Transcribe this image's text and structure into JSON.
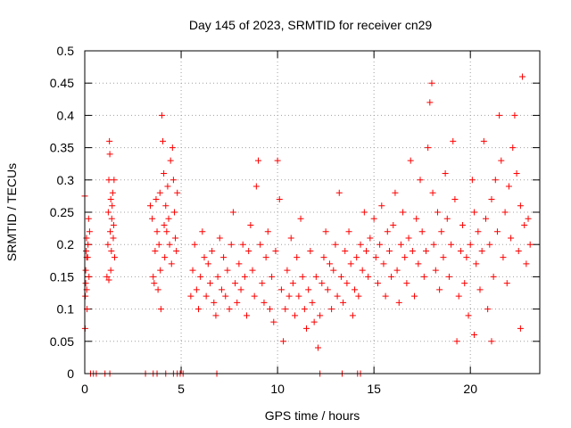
{
  "chart_data": {
    "type": "scatter",
    "title": "Day 145 of 2023, SRMTID for receiver cn29",
    "xlabel": "GPS time / hours",
    "ylabel": "SRMTID / TECUs",
    "xlim": [
      0,
      23.6
    ],
    "ylim": [
      0,
      0.5
    ],
    "x_ticks": [
      0,
      5,
      10,
      15,
      20
    ],
    "x_tick_labels": [
      "0",
      "5",
      "10",
      "15",
      "20"
    ],
    "y_ticks": [
      0,
      0.05,
      0.1,
      0.15,
      0.2,
      0.25,
      0.3,
      0.35,
      0.4,
      0.45,
      0.5
    ],
    "y_tick_labels": [
      "0",
      "0.05",
      "0.1",
      "0.15",
      "0.2",
      "0.25",
      "0.3",
      "0.35",
      "0.4",
      "0.45",
      "0.5"
    ],
    "grid": true,
    "marker": "+",
    "color": "#ff0000",
    "series": [
      {
        "name": "cn29",
        "points": [
          [
            0.0,
            0.275
          ],
          [
            0.02,
            0.07
          ],
          [
            0.03,
            0.12
          ],
          [
            0.05,
            0.16
          ],
          [
            0.07,
            0.19
          ],
          [
            0.09,
            0.21
          ],
          [
            0.1,
            0.13
          ],
          [
            0.12,
            0.1
          ],
          [
            0.15,
            0.18
          ],
          [
            0.17,
            0.2
          ],
          [
            0.2,
            0.24
          ],
          [
            0.22,
            0.15
          ],
          [
            0.25,
            0.22
          ],
          [
            0.1,
            0.18
          ],
          [
            0.05,
            0.14
          ],
          [
            1.15,
            0.15
          ],
          [
            1.2,
            0.2
          ],
          [
            1.22,
            0.25
          ],
          [
            1.25,
            0.3
          ],
          [
            1.28,
            0.36
          ],
          [
            1.3,
            0.34
          ],
          [
            1.32,
            0.22
          ],
          [
            1.35,
            0.27
          ],
          [
            1.38,
            0.19
          ],
          [
            1.4,
            0.24
          ],
          [
            1.42,
            0.26
          ],
          [
            1.45,
            0.28
          ],
          [
            1.48,
            0.21
          ],
          [
            1.5,
            0.23
          ],
          [
            1.52,
            0.3
          ],
          [
            1.55,
            0.18
          ],
          [
            1.25,
            0.145
          ],
          [
            1.35,
            0.16
          ],
          [
            3.4,
            0.26
          ],
          [
            3.5,
            0.24
          ],
          [
            3.55,
            0.15
          ],
          [
            3.6,
            0.14
          ],
          [
            3.65,
            0.19
          ],
          [
            3.7,
            0.27
          ],
          [
            3.75,
            0.22
          ],
          [
            3.8,
            0.13
          ],
          [
            3.85,
            0.2
          ],
          [
            3.9,
            0.28
          ],
          [
            3.92,
            0.16
          ],
          [
            3.95,
            0.1
          ],
          [
            4.0,
            0.4
          ],
          [
            4.05,
            0.36
          ],
          [
            4.1,
            0.31
          ],
          [
            4.12,
            0.23
          ],
          [
            4.15,
            0.18
          ],
          [
            4.2,
            0.26
          ],
          [
            4.25,
            0.22
          ],
          [
            4.3,
            0.29
          ],
          [
            4.35,
            0.24
          ],
          [
            4.4,
            0.2
          ],
          [
            4.45,
            0.33
          ],
          [
            4.5,
            0.17
          ],
          [
            4.55,
            0.35
          ],
          [
            4.6,
            0.3
          ],
          [
            4.65,
            0.25
          ],
          [
            4.7,
            0.21
          ],
          [
            4.75,
            0.19
          ],
          [
            4.8,
            0.28
          ],
          [
            5.5,
            0.12
          ],
          [
            5.6,
            0.16
          ],
          [
            5.7,
            0.2
          ],
          [
            5.8,
            0.13
          ],
          [
            5.9,
            0.1
          ],
          [
            6.0,
            0.15
          ],
          [
            6.1,
            0.22
          ],
          [
            6.2,
            0.18
          ],
          [
            6.3,
            0.12
          ],
          [
            6.4,
            0.17
          ],
          [
            6.5,
            0.14
          ],
          [
            6.6,
            0.19
          ],
          [
            6.7,
            0.11
          ],
          [
            6.8,
            0.09
          ],
          [
            6.9,
            0.15
          ],
          [
            7.0,
            0.21
          ],
          [
            7.1,
            0.13
          ],
          [
            7.2,
            0.18
          ],
          [
            7.3,
            0.12
          ],
          [
            7.4,
            0.16
          ],
          [
            7.5,
            0.1
          ],
          [
            7.6,
            0.2
          ],
          [
            7.7,
            0.25
          ],
          [
            7.8,
            0.14
          ],
          [
            7.9,
            0.11
          ],
          [
            8.0,
            0.17
          ],
          [
            8.1,
            0.13
          ],
          [
            8.2,
            0.2
          ],
          [
            8.3,
            0.15
          ],
          [
            8.4,
            0.09
          ],
          [
            8.5,
            0.19
          ],
          [
            8.6,
            0.23
          ],
          [
            8.7,
            0.16
          ],
          [
            8.8,
            0.12
          ],
          [
            8.9,
            0.29
          ],
          [
            9.0,
            0.33
          ],
          [
            9.1,
            0.2
          ],
          [
            9.2,
            0.14
          ],
          [
            9.3,
            0.11
          ],
          [
            9.4,
            0.18
          ],
          [
            9.5,
            0.22
          ],
          [
            9.6,
            0.1
          ],
          [
            9.7,
            0.15
          ],
          [
            9.8,
            0.08
          ],
          [
            9.9,
            0.19
          ],
          [
            10.0,
            0.33
          ],
          [
            10.1,
            0.27
          ],
          [
            10.2,
            0.13
          ],
          [
            10.3,
            0.05
          ],
          [
            10.4,
            0.1
          ],
          [
            10.5,
            0.16
          ],
          [
            10.6,
            0.12
          ],
          [
            10.7,
            0.21
          ],
          [
            10.8,
            0.14
          ],
          [
            10.9,
            0.09
          ],
          [
            11.0,
            0.18
          ],
          [
            11.1,
            0.12
          ],
          [
            11.2,
            0.24
          ],
          [
            11.3,
            0.15
          ],
          [
            11.4,
            0.1
          ],
          [
            11.5,
            0.07
          ],
          [
            11.6,
            0.13
          ],
          [
            11.7,
            0.19
          ],
          [
            11.8,
            0.11
          ],
          [
            11.9,
            0.08
          ],
          [
            12.0,
            0.15
          ],
          [
            12.1,
            0.04
          ],
          [
            12.2,
            0.09
          ],
          [
            12.3,
            0.14
          ],
          [
            12.4,
            0.18
          ],
          [
            12.5,
            0.22
          ],
          [
            12.6,
            0.13
          ],
          [
            12.7,
            0.17
          ],
          [
            12.8,
            0.1
          ],
          [
            12.9,
            0.16
          ],
          [
            13.0,
            0.2
          ],
          [
            13.1,
            0.12
          ],
          [
            13.2,
            0.28
          ],
          [
            13.3,
            0.15
          ],
          [
            13.4,
            0.11
          ],
          [
            13.5,
            0.19
          ],
          [
            13.6,
            0.14
          ],
          [
            13.7,
            0.22
          ],
          [
            13.8,
            0.17
          ],
          [
            13.9,
            0.09
          ],
          [
            14.0,
            0.13
          ],
          [
            14.1,
            0.18
          ],
          [
            14.2,
            0.12
          ],
          [
            14.3,
            0.2
          ],
          [
            14.4,
            0.16
          ],
          [
            14.5,
            0.25
          ],
          [
            14.6,
            0.19
          ],
          [
            14.7,
            0.15
          ],
          [
            14.8,
            0.21
          ],
          [
            15.0,
            0.24
          ],
          [
            15.1,
            0.18
          ],
          [
            15.2,
            0.14
          ],
          [
            15.3,
            0.2
          ],
          [
            15.4,
            0.26
          ],
          [
            15.5,
            0.17
          ],
          [
            15.6,
            0.12
          ],
          [
            15.7,
            0.22
          ],
          [
            15.8,
            0.19
          ],
          [
            15.9,
            0.15
          ],
          [
            16.0,
            0.23
          ],
          [
            16.1,
            0.28
          ],
          [
            16.2,
            0.16
          ],
          [
            16.3,
            0.11
          ],
          [
            16.4,
            0.2
          ],
          [
            16.5,
            0.25
          ],
          [
            16.6,
            0.18
          ],
          [
            16.7,
            0.14
          ],
          [
            16.8,
            0.21
          ],
          [
            16.9,
            0.33
          ],
          [
            17.0,
            0.19
          ],
          [
            17.1,
            0.12
          ],
          [
            17.2,
            0.24
          ],
          [
            17.3,
            0.17
          ],
          [
            17.4,
            0.3
          ],
          [
            17.5,
            0.22
          ],
          [
            17.6,
            0.15
          ],
          [
            17.7,
            0.19
          ],
          [
            17.8,
            0.35
          ],
          [
            17.9,
            0.42
          ],
          [
            18.0,
            0.45
          ],
          [
            18.05,
            0.28
          ],
          [
            18.1,
            0.2
          ],
          [
            18.2,
            0.16
          ],
          [
            18.3,
            0.25
          ],
          [
            18.4,
            0.13
          ],
          [
            18.5,
            0.22
          ],
          [
            18.6,
            0.18
          ],
          [
            18.7,
            0.31
          ],
          [
            18.8,
            0.24
          ],
          [
            18.9,
            0.15
          ],
          [
            19.0,
            0.2
          ],
          [
            19.1,
            0.36
          ],
          [
            19.2,
            0.27
          ],
          [
            19.3,
            0.05
          ],
          [
            19.4,
            0.12
          ],
          [
            19.5,
            0.19
          ],
          [
            19.6,
            0.23
          ],
          [
            19.7,
            0.14
          ],
          [
            19.8,
            0.18
          ],
          [
            19.9,
            0.09
          ],
          [
            20.0,
            0.2
          ],
          [
            20.1,
            0.3
          ],
          [
            20.2,
            0.25
          ],
          [
            20.3,
            0.17
          ],
          [
            20.4,
            0.22
          ],
          [
            20.5,
            0.13
          ],
          [
            20.6,
            0.19
          ],
          [
            20.7,
            0.36
          ],
          [
            20.8,
            0.24
          ],
          [
            20.9,
            0.1
          ],
          [
            21.0,
            0.2
          ],
          [
            21.1,
            0.27
          ],
          [
            21.2,
            0.15
          ],
          [
            21.3,
            0.3
          ],
          [
            21.4,
            0.22
          ],
          [
            21.5,
            0.4
          ],
          [
            21.6,
            0.33
          ],
          [
            21.7,
            0.18
          ],
          [
            21.8,
            0.25
          ],
          [
            21.9,
            0.14
          ],
          [
            22.0,
            0.29
          ],
          [
            22.1,
            0.21
          ],
          [
            22.2,
            0.35
          ],
          [
            22.3,
            0.4
          ],
          [
            22.4,
            0.31
          ],
          [
            22.5,
            0.19
          ],
          [
            22.6,
            0.26
          ],
          [
            22.7,
            0.46
          ],
          [
            22.8,
            0.23
          ],
          [
            22.9,
            0.17
          ],
          [
            23.0,
            0.24
          ],
          [
            23.1,
            0.2
          ],
          [
            22.6,
            0.07
          ],
          [
            21.1,
            0.05
          ],
          [
            20.2,
            0.06
          ],
          [
            0.3,
            0.0
          ],
          [
            0.45,
            0.0
          ],
          [
            0.6,
            0.0
          ],
          [
            1.05,
            0.0
          ],
          [
            1.3,
            0.0
          ],
          [
            3.15,
            0.0
          ],
          [
            3.55,
            0.0
          ],
          [
            3.75,
            0.0
          ],
          [
            4.2,
            0.0
          ],
          [
            4.6,
            0.0
          ],
          [
            4.8,
            0.0
          ],
          [
            4.95,
            0.0
          ],
          [
            5.1,
            0.0
          ],
          [
            6.85,
            0.0
          ],
          [
            12.2,
            0.0
          ],
          [
            13.35,
            0.0
          ],
          [
            14.15,
            0.0
          ],
          [
            14.3,
            0.0
          ]
        ]
      }
    ]
  }
}
